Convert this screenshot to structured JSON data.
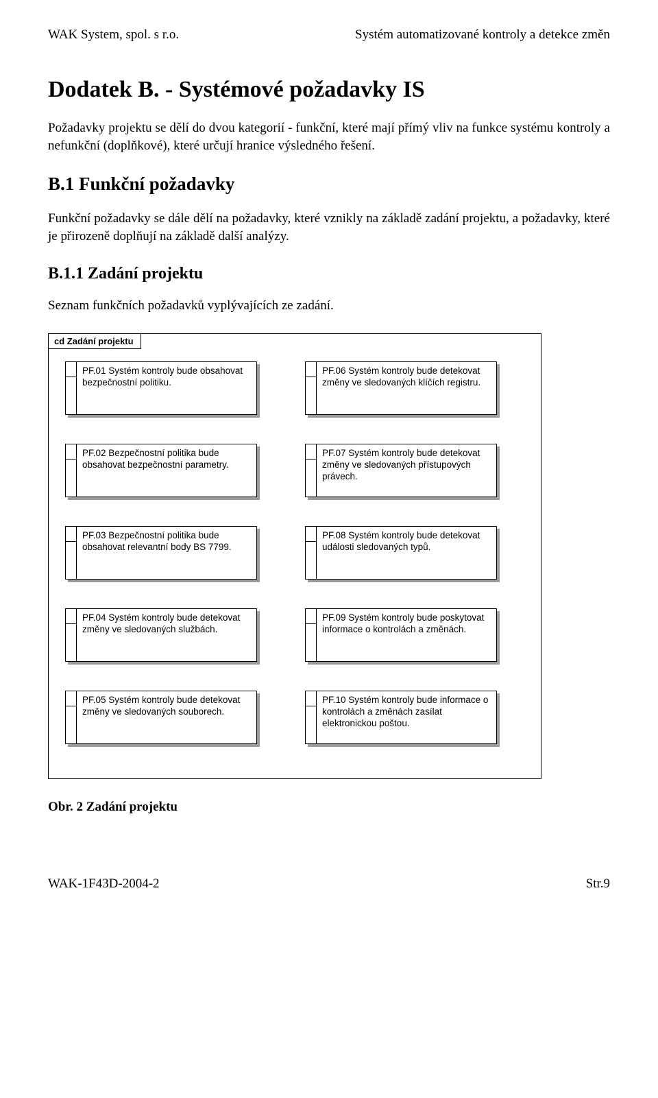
{
  "header": {
    "left": "WAK System, spol. s r.o.",
    "right": "Systém automatizované kontroly a detekce změn"
  },
  "h1": "Dodatek B. - Systémové požadavky IS",
  "para1": "Požadavky projektu se dělí do dvou kategorií - funkční, které mají přímý vliv na funkce systému kontroly a nefunkční (doplňkové), které určují hranice výsledného řešení.",
  "h2": "B.1 Funkční požadavky",
  "para2": "Funkční požadavky se dále dělí na požadavky, které vznikly na základě zadání projektu, a požadavky, které je přirozeně doplňují na základě další analýzy.",
  "h3": "B.1.1 Zadání projektu",
  "para3": "Seznam funkčních požadavků vyplývajících ze zadání.",
  "diagram": {
    "tab": "cd Zadání projektu",
    "rows": [
      {
        "left": "PF.01 Systém kontroly bude obsahovat bezpečnostní politiku.",
        "right": "PF.06 Systém kontroly bude detekovat změny ve sledovaných klíčích registru."
      },
      {
        "left": "PF.02 Bezpečnostní politika bude obsahovat bezpečnostní parametry.",
        "right": "PF.07 Systém kontroly bude detekovat změny ve sledovaných přístupových právech."
      },
      {
        "left": "PF.03 Bezpečnostní politika bude obsahovat relevantní body BS 7799.",
        "right": "PF.08 Systém kontroly bude detekovat události sledovaných typů."
      },
      {
        "left": "PF.04 Systém kontroly bude detekovat změny ve sledovaných službách.",
        "right": "PF.09 Systém kontroly bude poskytovat informace o kontrolách a změnách."
      },
      {
        "left": "PF.05 Systém kontroly bude detekovat změny ve sledovaných souborech.",
        "right": "PF.10 Systém kontroly bude informace o kontrolách a změnách zasílat elektronickou poštou."
      }
    ]
  },
  "caption": "Obr. 2 Zadání projektu",
  "footer": {
    "left": "WAK-1F43D-2004-2",
    "right": "Str.9"
  }
}
